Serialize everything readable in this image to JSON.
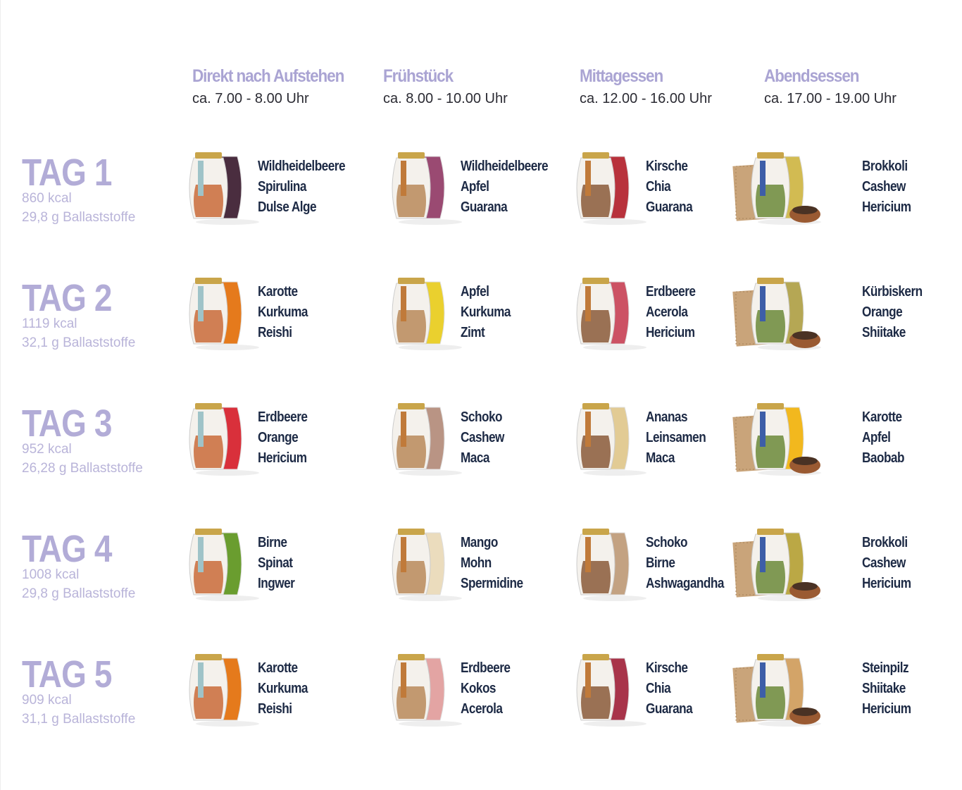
{
  "columns": [
    {
      "title": "Direkt nach Aufstehen",
      "time": "ca. 7.00 - 8.00  Uhr"
    },
    {
      "title": "Frühstück",
      "time": "ca. 8.00 - 10.00 Uhr"
    },
    {
      "title": "Mittagessen",
      "time": "ca. 12.00 - 16.00 Uhr"
    },
    {
      "title": "Abendsessen",
      "time": "ca. 17.00 - 19.00 Uhr"
    }
  ],
  "days": [
    {
      "label": "TAG 1",
      "kcal": "860 kcal",
      "fiber": "29,8 g Ballaststoffe",
      "meals": [
        [
          "Wildheidelbeere",
          "Spirulina",
          "Dulse Alge"
        ],
        [
          "Wildheidelbeere",
          "Apfel",
          "Guarana"
        ],
        [
          "Kirsche",
          "Chia",
          "Guarana"
        ],
        [
          "Brokkoli",
          "Cashew",
          "Hericium"
        ]
      ]
    },
    {
      "label": "TAG 2",
      "kcal": "1119 kcal",
      "fiber": "32,1 g Ballaststoffe",
      "meals": [
        [
          "Karotte",
          "Kurkuma",
          "Reishi"
        ],
        [
          "Apfel",
          "Kurkuma",
          "Zimt"
        ],
        [
          "Erdbeere",
          "Acerola",
          "Hericium"
        ],
        [
          "Kürbiskern",
          "Orange",
          "Shiitake"
        ]
      ]
    },
    {
      "label": "TAG 3",
      "kcal": "952 kcal",
      "fiber": "26,28 g Ballaststoffe",
      "meals": [
        [
          "Erdbeere",
          "Orange",
          "Hericium"
        ],
        [
          "Schoko",
          "Cashew",
          "Maca"
        ],
        [
          "Ananas",
          "Leinsamen",
          "Maca"
        ],
        [
          "Karotte",
          "Apfel",
          "Baobab"
        ]
      ]
    },
    {
      "label": "TAG 4",
      "kcal": "1008 kcal",
      "fiber": "29,8 g Ballaststoffe",
      "meals": [
        [
          "Birne",
          "Spinat",
          "Ingwer"
        ],
        [
          "Mango",
          "Mohn",
          "Spermidine"
        ],
        [
          "Schoko",
          "Birne",
          "Ashwagandha"
        ],
        [
          "Brokkoli",
          "Cashew",
          "Hericium"
        ]
      ]
    },
    {
      "label": "TAG 5",
      "kcal": "909 kcal",
      "fiber": "31,1 g Ballaststoffe",
      "meals": [
        [
          "Karotte",
          "Kurkuma",
          "Reishi"
        ],
        [
          "Erdbeere",
          "Kokos",
          "Acerola"
        ],
        [
          "Kirsche",
          "Chia",
          "Guarana"
        ],
        [
          "Steinpilz",
          "Shiitake",
          "Hericium"
        ]
      ]
    }
  ]
}
